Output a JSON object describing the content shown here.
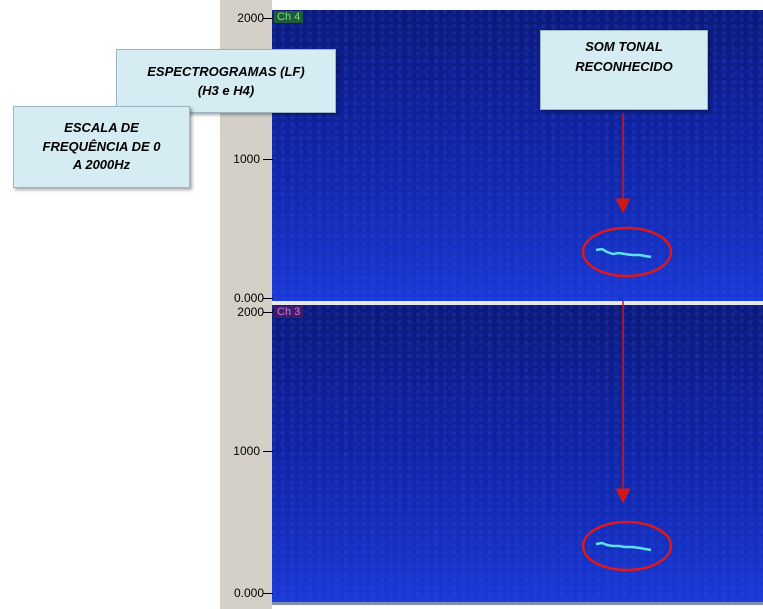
{
  "axis": {
    "top_panel": {
      "max": "2000",
      "mid": "1000",
      "min": "0.000"
    },
    "bottom_panel": {
      "max": "2000",
      "mid": "1000",
      "min": "0.000"
    }
  },
  "channels": {
    "top": "Ch 4",
    "bottom": "Ch 3"
  },
  "callouts": {
    "spectrograms": {
      "line1": "ESPECTROGRAMAS (LF)",
      "line2": "(H3 e H4)"
    },
    "frequency_scale": {
      "line1": "ESCALA DE",
      "line2": "FREQUÊNCIA DE 0",
      "line3": "A 2000Hz"
    },
    "tonal_sound": {
      "line1": "SOM TONAL",
      "line2": "RECONHECIDO"
    }
  },
  "colors": {
    "spectrogram_background": "#1126a8",
    "tonal_trace": "#5fe0f0",
    "highlight_ellipse": "#e01818",
    "arrow": "#d01818",
    "callout_fill": "#d5ecf3"
  }
}
